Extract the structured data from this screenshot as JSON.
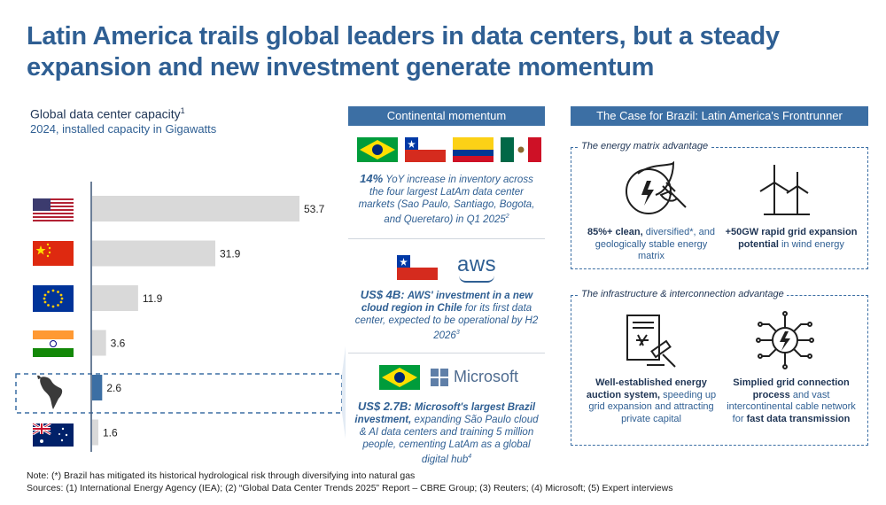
{
  "title": "Latin America trails global leaders in data centers, but a steady expansion and new investment generate momentum",
  "chart": {
    "title": "Global data center capacity",
    "title_sup": "1",
    "subtitle": "2024, installed capacity in Gigawatts"
  },
  "chart_data": {
    "type": "bar",
    "orientation": "horizontal",
    "title": "Global data center capacity",
    "subtitle": "2024, installed capacity in Gigawatts",
    "categories": [
      "United States",
      "China",
      "European Union",
      "India",
      "Latin America",
      "Australia"
    ],
    "values": [
      53.7,
      31.9,
      11.9,
      3.6,
      2.6,
      1.6
    ],
    "value_labels": [
      "53.7",
      "31.9",
      "11.9",
      "3.6",
      "2.6",
      "1.6"
    ],
    "highlight": "Latin America",
    "colors": {
      "default": "#d9d9d9",
      "highlight": "#3c6fa4"
    }
  },
  "middle": {
    "header": "Continental momentum",
    "block1": {
      "headline": "14%",
      "text": "YoY increase in inventory across the four largest LatAm data center markets (Sao Paulo, Santiago, Bogota, and Queretaro) in Q1 2025",
      "sup": "2"
    },
    "block2": {
      "logo": "aws",
      "headline": "US$ 4B:",
      "text_bold": "AWS' investment in a new cloud region in Chile",
      "text": "for its first data center, expected to be operational by H2 2026",
      "sup": "3"
    },
    "block3": {
      "logo": "Microsoft",
      "headline": "US$ 2.7B:",
      "text_bold": "Microsoft's largest Brazil investment,",
      "text": "expanding São Paulo cloud & AI data centers and training 5 million people, cementing LatAm as a global digital hub",
      "sup": "4"
    }
  },
  "right": {
    "header": "The Case for Brazil: Latin America's Frontrunner",
    "box1": {
      "title": "The energy matrix advantage",
      "item1_bold": "85%+ clean,",
      "item1": "diversified*, and geologically stable energy matrix",
      "item2_bold": "+50GW rapid grid expansion potential",
      "item2": "in wind energy"
    },
    "box2": {
      "title": "The infrastructure & interconnection advantage",
      "item1_bold": "Well-established energy auction system,",
      "item1": "speeding up grid expansion and attracting private capital",
      "item2_bold": "Simplied grid connection process",
      "item2": "and vast intercontinental cable network for",
      "item2_bold2": "fast data transmission"
    },
    "icons": [
      "leaf-plug-icon",
      "wind-turbine-icon",
      "auction-document-icon",
      "network-chip-icon"
    ]
  },
  "footer": {
    "note": "Note: (*) Brazil has mitigated its historical hydrological risk through diversifying into natural gas",
    "sources": "Sources: (1) International Energy Agency (IEA); (2) “Global Data Center Trends 2025” Report – CBRE Group; (3) Reuters; (4) Microsoft; (5) Expert interviews"
  }
}
